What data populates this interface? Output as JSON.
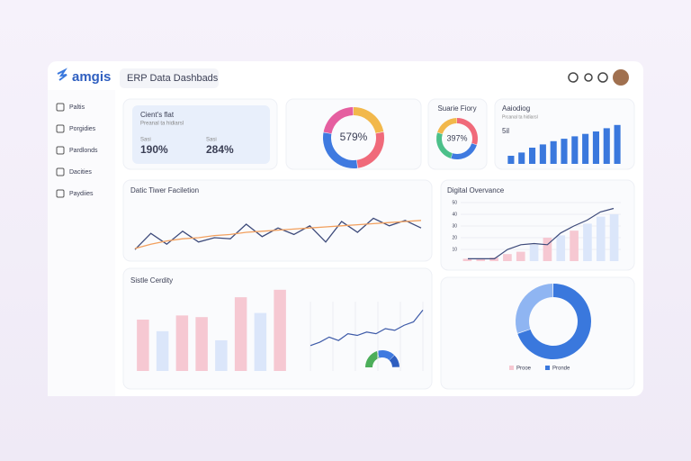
{
  "header": {
    "logo": "amgis",
    "search": "ERP Data Dashbads"
  },
  "sidebar": [
    "Paltis",
    "Porgidies",
    "Pardlonds",
    "Dacities",
    "Paydiies"
  ],
  "summary": {
    "title": "Cient's flat",
    "subtitle": "Preanal ta hidiarsl",
    "stats": [
      {
        "label": "Sasi",
        "value": "190%"
      },
      {
        "label": "Sasi",
        "value": "284%"
      }
    ]
  },
  "donut_main": {
    "label": "579%",
    "values": [
      22,
      26,
      30,
      22
    ],
    "colors": [
      "#f2b84b",
      "#f06a7a",
      "#3f7ae0",
      "#e55fa0"
    ]
  },
  "donut_small": {
    "title": "Suarie Fiory",
    "label": "397%",
    "values": [
      30,
      25,
      25,
      20
    ],
    "colors": [
      "#f06a7a",
      "#3f7ae0",
      "#4cc08a",
      "#f2b84b"
    ]
  },
  "activity": {
    "title": "Aaiodiog",
    "subtitle": "Prcanal ta hidiarsl",
    "note": "5il",
    "ylim": [
      0,
      60
    ],
    "values": [
      10,
      14,
      20,
      24,
      28,
      31,
      34,
      37,
      40,
      44,
      48
    ],
    "color": "#3a78dd"
  },
  "trend": {
    "title": "Datic Tiwer Faciletion",
    "ylim": [
      0,
      100
    ],
    "series": [
      {
        "color": "#3d4a7a",
        "values": [
          8,
          38,
          18,
          42,
          22,
          30,
          28,
          55,
          32,
          48,
          36,
          52,
          22,
          60,
          40,
          66,
          52,
          62,
          48
        ]
      },
      {
        "color": "#f2a05e",
        "values": [
          10,
          18,
          24,
          28,
          30,
          34,
          36,
          40,
          42,
          44,
          46,
          48,
          50,
          52,
          54,
          56,
          58,
          60,
          62
        ]
      }
    ]
  },
  "overview": {
    "title": "Digital Overvance",
    "ylim": [
      0,
      50
    ],
    "yticks": [
      10,
      20,
      30,
      40,
      50
    ],
    "bars": [
      2,
      2,
      3,
      6,
      8,
      14,
      20,
      22,
      26,
      32,
      38,
      40
    ],
    "bar_colors": [
      "#f6c8d2",
      "#f6c8d2",
      "#f6c8d2",
      "#f6c8d2",
      "#f6c8d2",
      "#dbe6fa",
      "#f6c8d2",
      "#dbe6fa",
      "#f6c8d2",
      "#dbe6fa",
      "#dbe6fa",
      "#dbe6fa"
    ],
    "line": [
      2,
      2,
      2,
      10,
      14,
      15,
      14,
      24,
      30,
      35,
      42,
      45
    ],
    "line_color": "#3d4a7a"
  },
  "capacity": {
    "title": "Sistle Cerdity",
    "ylim": [
      0,
      100
    ],
    "bars": [
      62,
      48,
      67,
      65,
      37,
      89,
      70,
      98
    ],
    "bar_colors": [
      "#f6c8d2",
      "#dbe6fa",
      "#f6c8d2",
      "#f6c8d2",
      "#dbe6fa",
      "#f6c8d2",
      "#dbe6fa",
      "#f6c8d2"
    ],
    "line": [
      30,
      34,
      40,
      36,
      44,
      42,
      46,
      44,
      50,
      48,
      54,
      58,
      72
    ],
    "line_color": "#3d5aa8",
    "half_donut": [
      40,
      35,
      25
    ],
    "half_colors": [
      "#4cae5a",
      "#3f7ae0",
      "#2f5fc0"
    ]
  },
  "distribution": {
    "values": [
      70,
      30
    ],
    "colors": [
      "#3a78dd",
      "#8fb5f2"
    ],
    "legend": [
      "Prooe",
      "Pronde"
    ]
  }
}
